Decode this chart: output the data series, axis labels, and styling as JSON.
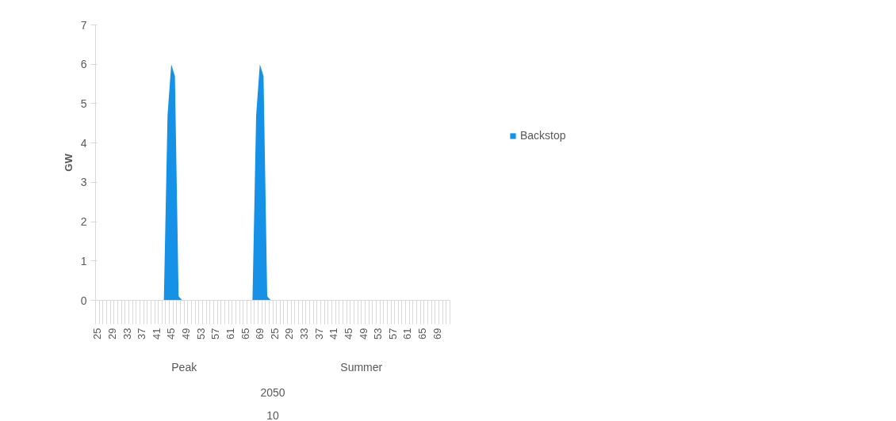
{
  "chart_data": {
    "type": "area",
    "ylabel": "GW",
    "categories": [
      "25",
      null,
      null,
      null,
      "29",
      null,
      null,
      null,
      "33",
      null,
      null,
      null,
      "37",
      null,
      null,
      null,
      "41",
      null,
      null,
      null,
      "45",
      null,
      null,
      null,
      "49",
      null,
      null,
      null,
      "53",
      null,
      null,
      null,
      "57",
      null,
      null,
      null,
      "61",
      null,
      null,
      null,
      "65",
      null,
      null,
      null,
      "69",
      null,
      null,
      null,
      "25",
      null,
      null,
      null,
      "29",
      null,
      null,
      null,
      "33",
      null,
      null,
      null,
      "37",
      null,
      null,
      null,
      "41",
      null,
      null,
      null,
      "45",
      null,
      null,
      null,
      "49",
      null,
      null,
      null,
      "53",
      null,
      null,
      null,
      "57",
      null,
      null,
      null,
      "61",
      null,
      null,
      null,
      "65",
      null,
      null,
      null,
      "69",
      null,
      null,
      null
    ],
    "series": [
      {
        "name": "Backstop",
        "color": "#1591e8",
        "values": [
          0,
          0,
          0,
          0,
          0,
          0,
          0,
          0,
          0,
          0,
          0,
          0,
          0,
          0,
          0,
          0,
          0,
          0,
          0,
          4.7,
          6.0,
          5.7,
          0.1,
          0,
          0,
          0,
          0,
          0,
          0,
          0,
          0,
          0,
          0,
          0,
          0,
          0,
          0,
          0,
          0,
          0,
          0,
          0,
          0,
          4.7,
          6.0,
          5.7,
          0.1,
          0,
          0,
          0,
          0,
          0,
          0,
          0,
          0,
          0,
          0,
          0,
          0,
          0,
          0,
          0,
          0,
          0,
          0,
          0,
          0,
          0,
          0,
          0,
          0,
          0,
          0,
          0,
          0,
          0,
          0,
          0,
          0,
          0,
          0,
          0,
          0,
          0,
          0,
          0,
          0,
          0,
          0,
          0,
          0,
          0,
          0,
          0,
          0,
          0
        ]
      }
    ],
    "ylim": [
      0,
      7
    ],
    "yticks": [
      0,
      1,
      2,
      3,
      4,
      5,
      6,
      7
    ],
    "legend": "right",
    "annotations": [
      "Peak",
      "Summer",
      "2050",
      "10"
    ]
  }
}
